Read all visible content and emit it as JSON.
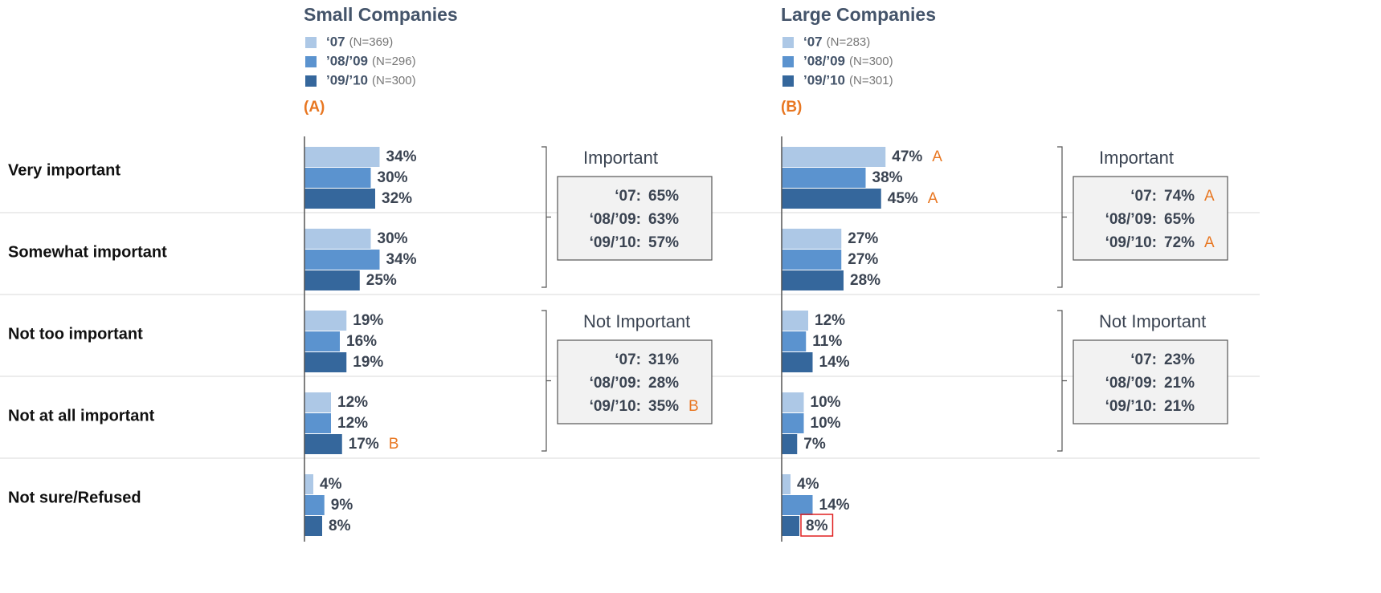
{
  "chart_data": [
    {
      "type": "bar",
      "orientation": "horizontal",
      "title": "Small Companies",
      "panel_label": "(A)",
      "categories": [
        "Very important",
        "Somewhat important",
        "Not too important",
        "Not at all important",
        "Not sure/Refused"
      ],
      "series": [
        {
          "name": "‘07",
          "n": "(N=369)",
          "color": "#adc8e6",
          "values": [
            34,
            30,
            19,
            12,
            4
          ],
          "value_labels": [
            "34%",
            "30%",
            "19%",
            "12%",
            "4%"
          ]
        },
        {
          "name": "’08/’09",
          "n": "(N=296)",
          "color": "#5b93cf",
          "values": [
            30,
            34,
            16,
            12,
            9
          ],
          "value_labels": [
            "30%",
            "34%",
            "16%",
            "12%",
            "9%"
          ]
        },
        {
          "name": "’09/’10",
          "n": "(N=300)",
          "color": "#35679c",
          "values": [
            32,
            25,
            19,
            17,
            8
          ],
          "value_labels": [
            "32%",
            "25%",
            "19%",
            "17%",
            "8%"
          ],
          "markers": [
            null,
            null,
            null,
            "B",
            null
          ]
        }
      ],
      "groups": [
        {
          "title": "Important",
          "rows": [
            {
              "label": "‘07:",
              "value": 65,
              "value_label": "65%"
            },
            {
              "label": "‘08/’09:",
              "value": 63,
              "value_label": "63%"
            },
            {
              "label": "‘09/’10:",
              "value": 57,
              "value_label": "57%"
            }
          ]
        },
        {
          "title": "Not Important",
          "rows": [
            {
              "label": "‘07:",
              "value": 31,
              "value_label": "31%"
            },
            {
              "label": "‘08/’09:",
              "value": 28,
              "value_label": "28%"
            },
            {
              "label": "‘09/’10:",
              "value": 35,
              "value_label": "35%",
              "marker": "B"
            }
          ]
        }
      ]
    },
    {
      "type": "bar",
      "orientation": "horizontal",
      "title": "Large Companies",
      "panel_label": "(B)",
      "series": [
        {
          "name": "‘07",
          "n": "(N=283)",
          "color": "#adc8e6",
          "values": [
            47,
            27,
            12,
            10,
            4
          ],
          "value_labels": [
            "47%",
            "27%",
            "12%",
            "10%",
            "4%"
          ],
          "markers": [
            "A",
            null,
            null,
            null,
            null
          ]
        },
        {
          "name": "’08/’09",
          "n": "(N=300)",
          "color": "#5b93cf",
          "values": [
            38,
            27,
            11,
            10,
            14
          ],
          "value_labels": [
            "38%",
            "27%",
            "11%",
            "10%",
            "14%"
          ]
        },
        {
          "name": "’09/’10",
          "n": "(N=301)",
          "color": "#35679c",
          "values": [
            45,
            28,
            14,
            7,
            8
          ],
          "value_labels": [
            "45%",
            "28%",
            "14%",
            "7%",
            "8%"
          ],
          "markers": [
            "A",
            null,
            null,
            null,
            null
          ]
        }
      ],
      "groups": [
        {
          "title": "Important",
          "rows": [
            {
              "label": "‘07:",
              "value": 74,
              "value_label": "74%",
              "marker": "A"
            },
            {
              "label": "‘08/’09:",
              "value": 65,
              "value_label": "65%"
            },
            {
              "label": "‘09/’10:",
              "value": 72,
              "value_label": "72%",
              "marker": "A"
            }
          ]
        },
        {
          "title": "Not Important",
          "rows": [
            {
              "label": "‘07:",
              "value": 23,
              "value_label": "23%"
            },
            {
              "label": "‘08/’09:",
              "value": 21,
              "value_label": "21%"
            },
            {
              "label": "‘09/’10:",
              "value": 21,
              "value_label": "21%"
            }
          ]
        }
      ]
    }
  ]
}
